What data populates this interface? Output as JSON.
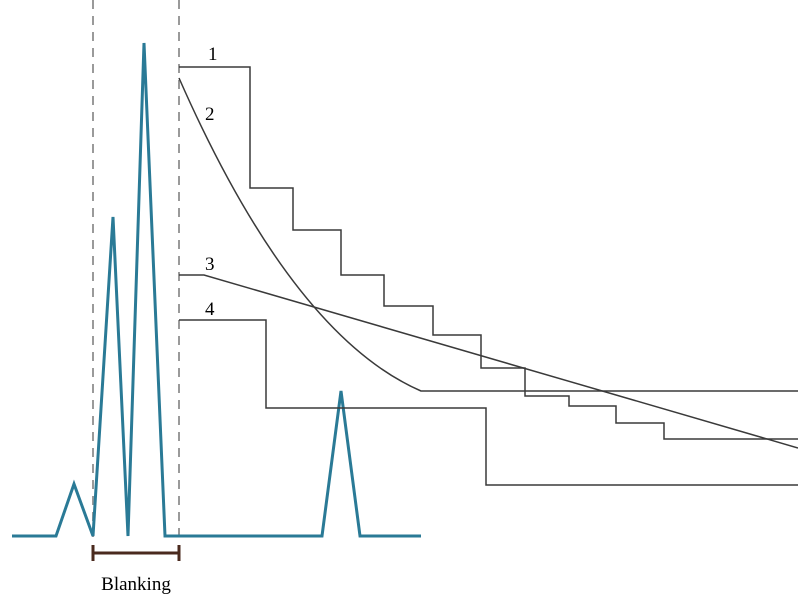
{
  "labels": {
    "curve_1": "1",
    "curve_2": "2",
    "curve_3": "3",
    "curve_4": "4",
    "blanking": "Blanking"
  },
  "colors": {
    "signal": "#2a7a96",
    "curve": "#3a3a3a",
    "guide": "#9a9a9a",
    "blanking_bar": "#4a2a1e"
  }
}
